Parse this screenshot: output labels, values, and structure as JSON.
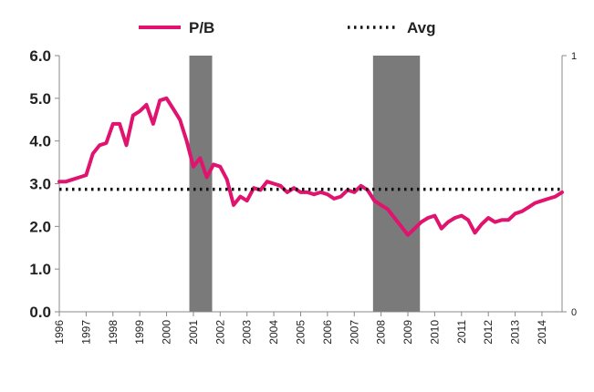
{
  "chart_data": {
    "type": "line",
    "title": "",
    "xlabel": "",
    "ylabel": "",
    "ylim": [
      0,
      6
    ],
    "y2lim": [
      0,
      1
    ],
    "y_ticks": [
      "0.0",
      "1.0",
      "2.0",
      "3.0",
      "4.0",
      "5.0",
      "6.0"
    ],
    "y2_ticks": [
      "0",
      "1"
    ],
    "x_ticks": [
      "1996",
      "1997",
      "1998",
      "1999",
      "2000",
      "2001",
      "2002",
      "2003",
      "2004",
      "2005",
      "2006",
      "2007",
      "2008",
      "2009",
      "2010",
      "2011",
      "2012",
      "2013",
      "2014"
    ],
    "xlim": [
      1996,
      2014.75
    ],
    "legend": {
      "placement": "top",
      "entries": [
        {
          "name": "P/B",
          "style": "solid",
          "color": "#e0136f"
        },
        {
          "name": "Avg",
          "style": "dotted",
          "color": "#111111"
        }
      ]
    },
    "series": [
      {
        "name": "P/B",
        "color": "#e0136f",
        "x": [
          1996.0,
          1996.25,
          1996.5,
          1996.75,
          1997.0,
          1997.25,
          1997.5,
          1997.75,
          1998.0,
          1998.25,
          1998.5,
          1998.75,
          1999.0,
          1999.25,
          1999.5,
          1999.75,
          2000.0,
          2000.25,
          2000.5,
          2000.75,
          2001.0,
          2001.25,
          2001.5,
          2001.75,
          2002.0,
          2002.25,
          2002.5,
          2002.75,
          2003.0,
          2003.25,
          2003.5,
          2003.75,
          2004.0,
          2004.25,
          2004.5,
          2004.75,
          2005.0,
          2005.25,
          2005.5,
          2005.75,
          2006.0,
          2006.25,
          2006.5,
          2006.75,
          2007.0,
          2007.25,
          2007.5,
          2007.75,
          2008.0,
          2008.25,
          2008.5,
          2008.75,
          2009.0,
          2009.25,
          2009.5,
          2009.75,
          2010.0,
          2010.25,
          2010.5,
          2010.75,
          2011.0,
          2011.25,
          2011.5,
          2011.75,
          2012.0,
          2012.25,
          2012.5,
          2012.75,
          2013.0,
          2013.25,
          2013.5,
          2013.75,
          2014.0,
          2014.25,
          2014.5,
          2014.75
        ],
        "values": [
          3.05,
          3.05,
          3.1,
          3.15,
          3.2,
          3.7,
          3.9,
          3.95,
          4.4,
          4.4,
          3.9,
          4.6,
          4.7,
          4.85,
          4.4,
          4.95,
          5.0,
          4.75,
          4.5,
          4.0,
          3.4,
          3.6,
          3.15,
          3.45,
          3.4,
          3.1,
          2.5,
          2.7,
          2.6,
          2.9,
          2.85,
          3.05,
          3.0,
          2.95,
          2.8,
          2.9,
          2.8,
          2.8,
          2.75,
          2.8,
          2.75,
          2.65,
          2.7,
          2.85,
          2.8,
          2.95,
          2.85,
          2.6,
          2.5,
          2.4,
          2.2,
          2.0,
          1.8,
          1.95,
          2.1,
          2.2,
          2.25,
          1.95,
          2.1,
          2.2,
          2.25,
          2.15,
          1.85,
          2.05,
          2.2,
          2.1,
          2.15,
          2.15,
          2.3,
          2.35,
          2.45,
          2.55,
          2.6,
          2.65,
          2.7,
          2.8
        ]
      },
      {
        "name": "Avg",
        "color": "#111111",
        "x": [
          1996.0,
          2014.75
        ],
        "values": [
          2.87,
          2.87
        ]
      }
    ],
    "shaded_ranges": [
      {
        "from": 2000.85,
        "to": 2001.7,
        "color": "#7a7a7a"
      },
      {
        "from": 2007.7,
        "to": 2009.45,
        "color": "#7a7a7a"
      }
    ],
    "grid": false
  }
}
